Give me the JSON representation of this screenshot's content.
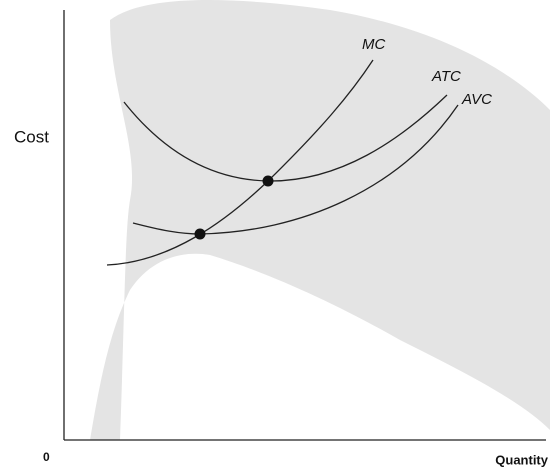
{
  "axes": {
    "y_label": "Cost",
    "x_label": "Quantity",
    "origin": "0"
  },
  "curves": [
    {
      "label": "MC"
    },
    {
      "label": "ATC"
    },
    {
      "label": "AVC"
    }
  ]
}
